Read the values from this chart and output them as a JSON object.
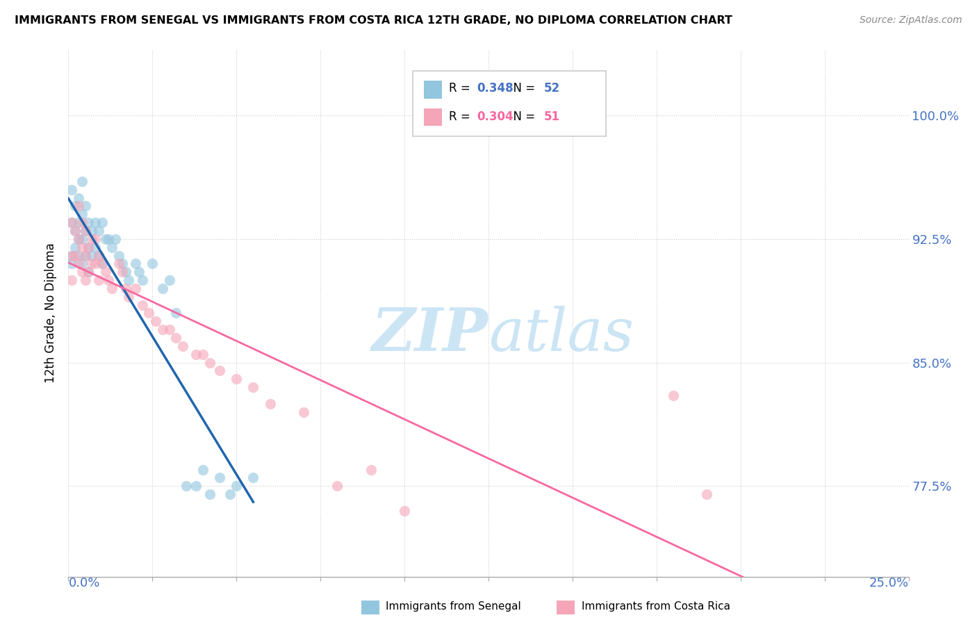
{
  "title": "IMMIGRANTS FROM SENEGAL VS IMMIGRANTS FROM COSTA RICA 12TH GRADE, NO DIPLOMA CORRELATION CHART",
  "source": "Source: ZipAtlas.com",
  "ylabel_labels": [
    "77.5%",
    "85.0%",
    "92.5%",
    "100.0%"
  ],
  "ylabel_values": [
    0.775,
    0.85,
    0.925,
    1.0
  ],
  "xmin": 0.0,
  "xmax": 0.25,
  "ymin": 0.72,
  "ymax": 1.04,
  "color_senegal": "#92c5de",
  "color_costarica": "#f4a6b8",
  "color_senegal_line": "#2166ac",
  "color_costarica_line": "#f768a1",
  "watermark_zip": "ZIP",
  "watermark_atlas": "atlas",
  "watermark_color": "#cce5f5",
  "legend_label_senegal": "Immigrants from Senegal",
  "legend_label_costarica": "Immigrants from Costa Rica",
  "R_senegal": 0.348,
  "N_senegal": 52,
  "R_costarica": 0.304,
  "N_costarica": 51,
  "senegal_x": [
    0.001,
    0.001,
    0.001,
    0.001,
    0.002,
    0.002,
    0.002,
    0.003,
    0.003,
    0.003,
    0.003,
    0.004,
    0.004,
    0.004,
    0.004,
    0.005,
    0.005,
    0.005,
    0.006,
    0.006,
    0.006,
    0.007,
    0.007,
    0.008,
    0.008,
    0.009,
    0.009,
    0.01,
    0.01,
    0.011,
    0.012,
    0.013,
    0.014,
    0.015,
    0.016,
    0.017,
    0.018,
    0.02,
    0.021,
    0.022,
    0.025,
    0.028,
    0.03,
    0.032,
    0.035,
    0.038,
    0.04,
    0.042,
    0.045,
    0.048,
    0.05,
    0.055
  ],
  "senegal_y": [
    0.955,
    0.935,
    0.915,
    0.91,
    0.945,
    0.93,
    0.92,
    0.95,
    0.935,
    0.925,
    0.915,
    0.96,
    0.94,
    0.925,
    0.91,
    0.945,
    0.93,
    0.915,
    0.935,
    0.92,
    0.905,
    0.93,
    0.915,
    0.935,
    0.92,
    0.93,
    0.915,
    0.935,
    0.91,
    0.925,
    0.925,
    0.92,
    0.925,
    0.915,
    0.91,
    0.905,
    0.9,
    0.91,
    0.905,
    0.9,
    0.91,
    0.895,
    0.9,
    0.88,
    0.775,
    0.775,
    0.785,
    0.77,
    0.78,
    0.77,
    0.775,
    0.78
  ],
  "costarica_x": [
    0.001,
    0.001,
    0.001,
    0.002,
    0.002,
    0.003,
    0.003,
    0.003,
    0.004,
    0.004,
    0.004,
    0.005,
    0.005,
    0.005,
    0.006,
    0.006,
    0.007,
    0.007,
    0.008,
    0.008,
    0.009,
    0.009,
    0.01,
    0.011,
    0.012,
    0.013,
    0.015,
    0.016,
    0.017,
    0.018,
    0.02,
    0.022,
    0.024,
    0.026,
    0.028,
    0.03,
    0.032,
    0.034,
    0.038,
    0.04,
    0.042,
    0.045,
    0.05,
    0.055,
    0.06,
    0.07,
    0.08,
    0.09,
    0.1,
    0.18,
    0.19
  ],
  "costarica_y": [
    0.935,
    0.915,
    0.9,
    0.93,
    0.915,
    0.945,
    0.925,
    0.91,
    0.935,
    0.92,
    0.905,
    0.93,
    0.915,
    0.9,
    0.92,
    0.905,
    0.925,
    0.91,
    0.925,
    0.91,
    0.915,
    0.9,
    0.91,
    0.905,
    0.9,
    0.895,
    0.91,
    0.905,
    0.895,
    0.89,
    0.895,
    0.885,
    0.88,
    0.875,
    0.87,
    0.87,
    0.865,
    0.86,
    0.855,
    0.855,
    0.85,
    0.845,
    0.84,
    0.835,
    0.825,
    0.82,
    0.775,
    0.785,
    0.76,
    0.83,
    0.77
  ]
}
